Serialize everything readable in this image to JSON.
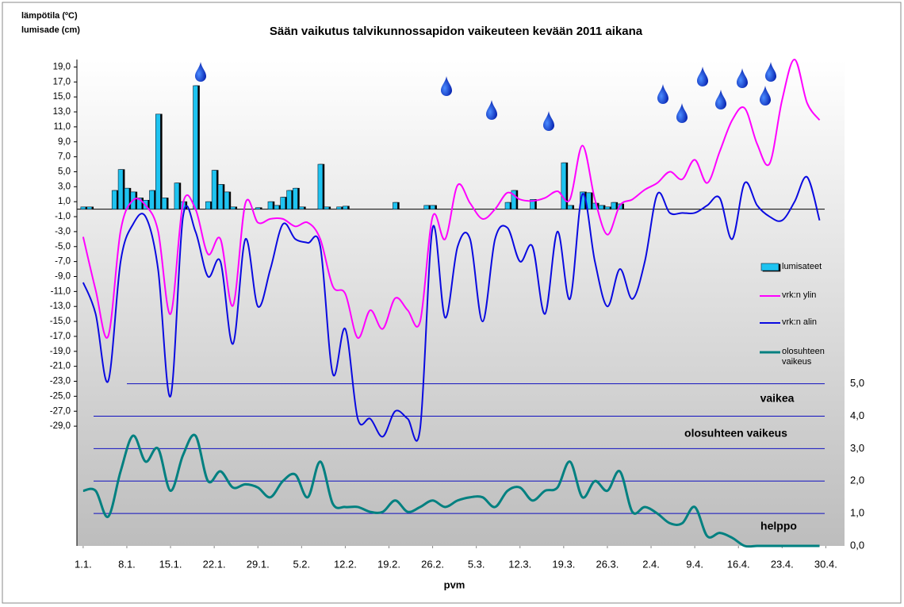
{
  "chart_data": {
    "type": "combo",
    "title": "Sään vaikutus talvikunnossapidon vaikeuteen kevään 2011 aikana",
    "y_label_lines": [
      "lämpötila (ºC)",
      "lumisade (cm)"
    ],
    "x_label": "pvm",
    "annotations": [
      "vaikea",
      "olosuhteen vaikeus",
      "helppo"
    ],
    "legend": "right",
    "xlim": [
      -1,
      122
    ],
    "xticks": [
      {
        "value": 0,
        "label": "1.1."
      },
      {
        "value": 7,
        "label": "8.1."
      },
      {
        "value": 14,
        "label": "15.1."
      },
      {
        "value": 21,
        "label": "22.1."
      },
      {
        "value": 28,
        "label": "29.1."
      },
      {
        "value": 35,
        "label": "5.2."
      },
      {
        "value": 42,
        "label": "12.2."
      },
      {
        "value": 49,
        "label": "19.2."
      },
      {
        "value": 56,
        "label": "26.2."
      },
      {
        "value": 63,
        "label": "5.3."
      },
      {
        "value": 70,
        "label": "12.3."
      },
      {
        "value": 77,
        "label": "19.3."
      },
      {
        "value": 84,
        "label": "26.3."
      },
      {
        "value": 91,
        "label": "2.4."
      },
      {
        "value": 98,
        "label": "9.4."
      },
      {
        "value": 105,
        "label": "16.4."
      },
      {
        "value": 112,
        "label": "23.4."
      },
      {
        "value": 119,
        "label": "30.4."
      }
    ],
    "ylim": [
      -45,
      20
    ],
    "yticks": [
      {
        "value": 19,
        "label": "19,0"
      },
      {
        "value": 17,
        "label": "17,0"
      },
      {
        "value": 15,
        "label": "15,0"
      },
      {
        "value": 13,
        "label": "13,0"
      },
      {
        "value": 11,
        "label": "11,0"
      },
      {
        "value": 9,
        "label": "9,0"
      },
      {
        "value": 7,
        "label": "7,0"
      },
      {
        "value": 5,
        "label": "5,0"
      },
      {
        "value": 3,
        "label": "3,0"
      },
      {
        "value": 1,
        "label": "1,0"
      },
      {
        "value": -1,
        "label": "-1,0"
      },
      {
        "value": -3,
        "label": "-3,0"
      },
      {
        "value": -5,
        "label": "-5,0"
      },
      {
        "value": -7,
        "label": "-7,0"
      },
      {
        "value": -9,
        "label": "-9,0"
      },
      {
        "value": -11,
        "label": "-11,0"
      },
      {
        "value": -13,
        "label": "-13,0"
      },
      {
        "value": -15,
        "label": "-15,0"
      },
      {
        "value": -17,
        "label": "-17,0"
      },
      {
        "value": -19,
        "label": "-19,0"
      },
      {
        "value": -21,
        "label": "-21,0"
      },
      {
        "value": -23,
        "label": "-23,0"
      },
      {
        "value": -25,
        "label": "-25,0"
      },
      {
        "value": -27,
        "label": "-27,0"
      },
      {
        "value": -29,
        "label": "-29,0"
      }
    ],
    "y2lim": [
      0,
      15
    ],
    "y2ticks": [
      {
        "value": 0,
        "label": "0,0"
      },
      {
        "value": 1,
        "label": "1,0"
      },
      {
        "value": 2,
        "label": "2,0"
      },
      {
        "value": 3,
        "label": "3,0"
      },
      {
        "value": 4,
        "label": "4,0"
      },
      {
        "value": 5,
        "label": "5,0"
      }
    ],
    "y2grid": true,
    "series": [
      {
        "name": "lumisateet",
        "type": "bar",
        "color": "#1ec3f0",
        "x": [
          0,
          1,
          5,
          6,
          7,
          8,
          9,
          10,
          11,
          12,
          13,
          15,
          16,
          18,
          20,
          21,
          22,
          23,
          24,
          28,
          30,
          31,
          32,
          33,
          34,
          35,
          38,
          39,
          41,
          42,
          50,
          55,
          56,
          68,
          69,
          72,
          77,
          78,
          80,
          81,
          82,
          83,
          84,
          85,
          86
        ],
        "values": [
          0.3,
          0.3,
          2.5,
          5.3,
          2.8,
          2.3,
          1.5,
          1.2,
          2.5,
          12.7,
          1.5,
          3.5,
          1,
          16.5,
          1,
          5.2,
          3.3,
          2.3,
          0.3,
          0.2,
          1,
          0.5,
          1.6,
          2.5,
          2.8,
          0.3,
          6,
          0.3,
          0.3,
          0.4,
          0.9,
          0.5,
          0.5,
          0.9,
          2.5,
          1.3,
          6.2,
          0.5,
          2.3,
          2.2,
          0.8,
          0.5,
          0.3,
          0.9,
          0.7
        ]
      },
      {
        "name": "vrk:n ylin",
        "type": "line",
        "color": "#ff00ff",
        "x": [
          0,
          2,
          4,
          6,
          8,
          10,
          12,
          14,
          16,
          18,
          20,
          22,
          24,
          26,
          28,
          30,
          32,
          34,
          36,
          38,
          40,
          42,
          44,
          46,
          48,
          50,
          52,
          54,
          56,
          58,
          60,
          62,
          64,
          66,
          68,
          70,
          72,
          74,
          76,
          78,
          80,
          82,
          84,
          86,
          88,
          90,
          92,
          94,
          96,
          98,
          100,
          102,
          104,
          106,
          108,
          110,
          112,
          114,
          116,
          118
        ],
        "values": [
          -3.7,
          -10.8,
          -17,
          -2.9,
          1.2,
          0.5,
          -2.9,
          -14,
          0.8,
          0,
          -6,
          -4,
          -12.9,
          0.8,
          -1.8,
          -1.3,
          -1.3,
          -2.3,
          -1.8,
          -4,
          -10.3,
          -11.3,
          -17.2,
          -13.5,
          -16,
          -11.9,
          -13.5,
          -15,
          -1,
          -4,
          3.2,
          0.8,
          -1.3,
          0,
          2.2,
          1.3,
          1.1,
          1.5,
          2.4,
          1.3,
          8.5,
          1.3,
          -3.4,
          0.5,
          1.3,
          2.6,
          3.5,
          5,
          4,
          6.6,
          3.5,
          7.7,
          11.9,
          13.5,
          8.7,
          6.1,
          14.6,
          20,
          14.2,
          11.9
        ]
      },
      {
        "name": "vrk:n alin",
        "type": "line",
        "color": "#0a0ae0",
        "x": [
          0,
          2,
          4,
          6,
          8,
          10,
          12,
          14,
          16,
          18,
          20,
          22,
          24,
          26,
          28,
          30,
          32,
          34,
          36,
          38,
          40,
          42,
          44,
          46,
          48,
          50,
          52,
          54,
          56,
          58,
          60,
          62,
          64,
          66,
          68,
          70,
          72,
          74,
          76,
          78,
          80,
          82,
          84,
          86,
          88,
          90,
          92,
          94,
          96,
          98,
          100,
          102,
          104,
          106,
          108,
          110,
          112,
          114,
          116,
          118
        ],
        "values": [
          -9.8,
          -14,
          -23,
          -7,
          -2,
          -1,
          -8,
          -25,
          -1,
          -3,
          -9,
          -7,
          -18,
          -4,
          -13,
          -8,
          -2,
          -4,
          -4.5,
          -5,
          -22,
          -16,
          -28,
          -28,
          -30.4,
          -27,
          -28,
          -29.3,
          -2.5,
          -14.5,
          -5,
          -4,
          -15,
          -4,
          -2.5,
          -7,
          -5,
          -14,
          -3,
          -12,
          2,
          -7,
          -13,
          -8,
          -12,
          -7,
          2,
          -0.5,
          -0.5,
          -0.5,
          0.5,
          1.5,
          -4,
          3.5,
          0.5,
          -1,
          -1.5,
          1,
          4.3,
          -1.5
        ]
      },
      {
        "name": "olosuhteen vaikeus",
        "type": "line",
        "axis": "y2",
        "color": "#008080",
        "x": [
          0,
          2,
          4,
          6,
          8,
          10,
          12,
          14,
          16,
          18,
          20,
          22,
          24,
          26,
          28,
          30,
          32,
          34,
          36,
          38,
          40,
          42,
          44,
          46,
          48,
          50,
          52,
          54,
          56,
          58,
          60,
          62,
          64,
          66,
          68,
          70,
          72,
          74,
          76,
          78,
          80,
          82,
          84,
          86,
          88,
          90,
          92,
          94,
          96,
          98,
          100,
          102,
          104,
          106,
          108,
          110,
          112,
          114,
          116,
          118
        ],
        "values": [
          1.7,
          1.7,
          0.9,
          2.3,
          3.4,
          2.6,
          3,
          1.7,
          2.8,
          3.4,
          2,
          2.3,
          1.8,
          1.9,
          1.8,
          1.5,
          2,
          2.2,
          1.5,
          2.6,
          1.3,
          1.2,
          1.2,
          1.05,
          1.05,
          1.4,
          1.05,
          1.2,
          1.4,
          1.2,
          1.4,
          1.5,
          1.5,
          1.2,
          1.7,
          1.8,
          1.4,
          1.7,
          1.8,
          2.6,
          1.5,
          2,
          1.7,
          2.3,
          1.05,
          1.2,
          1,
          0.7,
          0.7,
          1.2,
          0.3,
          0.4,
          0.25,
          0,
          0,
          0,
          0,
          0,
          0,
          0
        ]
      }
    ]
  }
}
